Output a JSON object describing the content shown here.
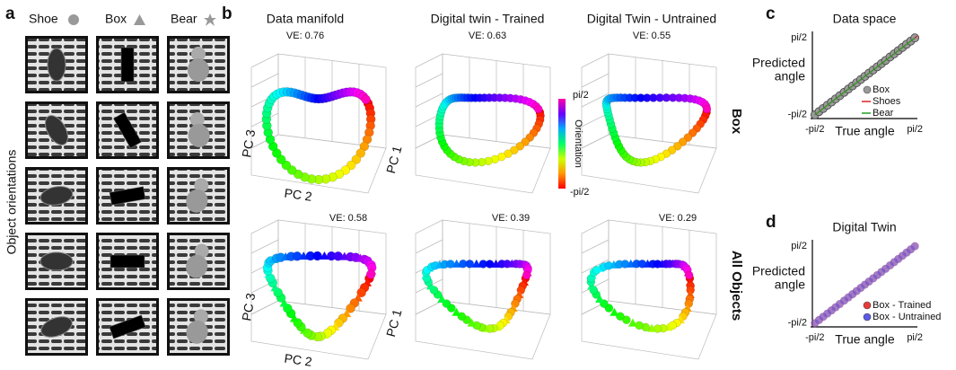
{
  "panels": {
    "a": {
      "label": "a",
      "columns": [
        "Shoe",
        "Box",
        "Bear"
      ],
      "row_title": "Object orientations"
    },
    "b": {
      "label": "b",
      "column_titles": [
        "Data manifold",
        "Digital twin - Trained",
        "Digital Twin - Untrained"
      ],
      "ve_box": [
        "VE: 0.76",
        "VE: 0.63",
        "VE: 0.55"
      ],
      "ve_all": [
        "VE: 0.58",
        "VE: 0.39",
        "VE: 0.29"
      ],
      "row_labels": [
        "Box",
        "All Objects"
      ],
      "axis_labels": {
        "pc1": "PC 1",
        "pc2": "PC 2",
        "pc3": "PC 3"
      },
      "colorbar": {
        "title": "Orientation",
        "top": "pi/2",
        "bottom": "-pi/2"
      }
    },
    "c": {
      "label": "c",
      "title": "Data space",
      "xlabel": "True angle",
      "ylabel": [
        "Predicted",
        "angle"
      ],
      "xlim": [
        -1.65,
        1.65
      ],
      "ylim": [
        -1.65,
        1.65
      ],
      "xticks": [
        {
          "value": -1.5708,
          "label": "-pi/2"
        },
        {
          "value": 1.5708,
          "label": "pi/2"
        }
      ],
      "yticks": [
        {
          "value": -1.5708,
          "label": "-pi/2"
        },
        {
          "value": 1.5708,
          "label": "pi/2"
        }
      ],
      "series": [
        {
          "name": "Box",
          "kind": "points",
          "color": "#9a9a9a",
          "x": [
            -1.57,
            -1.44,
            -1.31,
            -1.18,
            -1.05,
            -0.92,
            -0.79,
            -0.65,
            -0.52,
            -0.39,
            -0.26,
            -0.13,
            0,
            0.13,
            0.26,
            0.39,
            0.52,
            0.65,
            0.79,
            0.92,
            1.05,
            1.18,
            1.31,
            1.44,
            1.57
          ],
          "y": [
            -1.57,
            -1.44,
            -1.31,
            -1.18,
            -1.05,
            -0.92,
            -0.79,
            -0.65,
            -0.52,
            -0.39,
            -0.26,
            -0.13,
            0,
            0.13,
            0.26,
            0.39,
            0.52,
            0.65,
            0.79,
            0.92,
            1.05,
            1.18,
            1.31,
            1.44,
            1.57
          ]
        },
        {
          "name": "Shoes",
          "kind": "line",
          "color": "#e02020",
          "x": [
            -1.57,
            1.65
          ],
          "y": [
            -1.57,
            1.65
          ]
        },
        {
          "name": "Bear",
          "kind": "line",
          "color": "#20a020",
          "x": [
            -1.57,
            1.57
          ],
          "y": [
            -1.57,
            1.57
          ]
        }
      ]
    },
    "d": {
      "label": "d",
      "title": "Digital Twin",
      "xlabel": "True angle",
      "ylabel": [
        "Predicted",
        "angle"
      ],
      "xlim": [
        -1.65,
        1.65
      ],
      "ylim": [
        -1.65,
        1.65
      ],
      "xticks": [
        {
          "value": -1.5708,
          "label": "-pi/2"
        },
        {
          "value": 1.5708,
          "label": "pi/2"
        }
      ],
      "yticks": [
        {
          "value": -1.5708,
          "label": "-pi/2"
        },
        {
          "value": 1.5708,
          "label": "pi/2"
        }
      ],
      "series": [
        {
          "name": "Box - Trained",
          "kind": "points",
          "color": "#e83a3a",
          "x": [
            -1.57,
            -1.44,
            -1.31,
            -1.18,
            -1.05,
            -0.92,
            -0.79,
            -0.65,
            -0.52,
            -0.39,
            -0.26,
            -0.13,
            0,
            0.13,
            0.26,
            0.39,
            0.52,
            0.65,
            0.79,
            0.92,
            1.05,
            1.18,
            1.31,
            1.44,
            1.57
          ],
          "y": [
            -1.57,
            -1.44,
            -1.31,
            -1.18,
            -1.05,
            -0.92,
            -0.79,
            -0.65,
            -0.52,
            -0.39,
            -0.26,
            -0.13,
            0,
            0.13,
            0.26,
            0.39,
            0.52,
            0.65,
            0.79,
            0.92,
            1.05,
            1.18,
            1.31,
            1.44,
            1.57
          ]
        },
        {
          "name": "Box - Untrained",
          "kind": "points",
          "color": "#5a5ae8",
          "x": [
            -1.57,
            -1.44,
            -1.31,
            -1.18,
            -1.05,
            -0.92,
            -0.79,
            -0.65,
            -0.52,
            -0.39,
            -0.26,
            -0.13,
            0,
            0.13,
            0.26,
            0.39,
            0.52,
            0.65,
            0.79,
            0.92,
            1.05,
            1.18,
            1.31,
            1.44,
            1.57
          ],
          "y": [
            -1.57,
            -1.44,
            -1.31,
            -1.18,
            -1.05,
            -0.92,
            -0.79,
            -0.65,
            -0.52,
            -0.39,
            -0.26,
            -0.13,
            0,
            0.13,
            0.26,
            0.39,
            0.52,
            0.65,
            0.79,
            0.92,
            1.05,
            1.18,
            1.31,
            1.44,
            1.57
          ]
        }
      ]
    }
  }
}
